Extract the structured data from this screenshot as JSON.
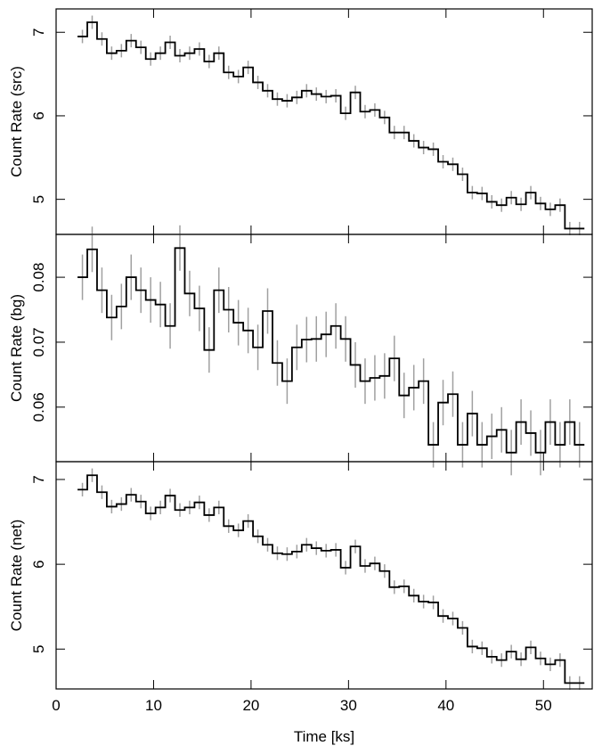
{
  "chart_data": [
    {
      "type": "step",
      "ylabel": "Count Rate (src)",
      "color": "#000000",
      "error_color": "#a0a0a0",
      "xlim": [
        0,
        55
      ],
      "xticks": [
        0,
        10,
        20,
        30,
        40,
        50
      ],
      "ylim": [
        4.58,
        7.28
      ],
      "yticks": [
        5,
        6,
        7
      ],
      "yerr": 0.08,
      "x": [
        2.7,
        3.7,
        4.7,
        5.7,
        6.7,
        7.7,
        8.7,
        9.7,
        10.7,
        11.7,
        12.7,
        13.7,
        14.7,
        15.7,
        16.7,
        17.7,
        18.7,
        19.7,
        20.7,
        21.7,
        22.7,
        23.7,
        24.7,
        25.7,
        26.7,
        27.7,
        28.7,
        29.7,
        30.7,
        31.7,
        32.7,
        33.7,
        34.7,
        35.7,
        36.7,
        37.7,
        38.7,
        39.7,
        40.7,
        41.7,
        42.7,
        43.7,
        44.7,
        45.7,
        46.7,
        47.7,
        48.7,
        49.7,
        50.7,
        51.7,
        52.7,
        53.7
      ],
      "values": [
        6.95,
        7.12,
        6.92,
        6.75,
        6.78,
        6.9,
        6.82,
        6.68,
        6.75,
        6.88,
        6.72,
        6.75,
        6.8,
        6.65,
        6.75,
        6.52,
        6.47,
        6.58,
        6.4,
        6.3,
        6.2,
        6.18,
        6.22,
        6.3,
        6.26,
        6.23,
        6.24,
        6.03,
        6.28,
        6.05,
        6.07,
        5.98,
        5.8,
        5.8,
        5.7,
        5.62,
        5.6,
        5.45,
        5.42,
        5.3,
        5.08,
        5.07,
        4.97,
        4.93,
        5.02,
        4.94,
        5.08,
        4.95,
        4.88,
        4.93,
        4.65,
        4.65
      ]
    },
    {
      "type": "step",
      "ylabel": "Count Rate (bg)",
      "color": "#000000",
      "error_color": "#a0a0a0",
      "xlim": [
        0,
        55
      ],
      "xticks": [
        0,
        10,
        20,
        30,
        40,
        50
      ],
      "ylim": [
        0.0516,
        0.0866
      ],
      "yticks": [
        0.06,
        0.07,
        0.08
      ],
      "yerr": 0.0035,
      "x": [
        2.7,
        3.7,
        4.7,
        5.7,
        6.7,
        7.7,
        8.7,
        9.7,
        10.7,
        11.7,
        12.7,
        13.7,
        14.7,
        15.7,
        16.7,
        17.7,
        18.7,
        19.7,
        20.7,
        21.7,
        22.7,
        23.7,
        24.7,
        25.7,
        26.7,
        27.7,
        28.7,
        29.7,
        30.7,
        31.7,
        32.7,
        33.7,
        34.7,
        35.7,
        36.7,
        37.7,
        38.7,
        39.7,
        40.7,
        41.7,
        42.7,
        43.7,
        44.7,
        45.7,
        46.7,
        47.7,
        48.7,
        49.7,
        50.7,
        51.7,
        52.7,
        53.7
      ],
      "values": [
        0.08,
        0.0843,
        0.078,
        0.0738,
        0.0755,
        0.08,
        0.078,
        0.0765,
        0.0758,
        0.0725,
        0.0845,
        0.0775,
        0.0752,
        0.0688,
        0.078,
        0.075,
        0.073,
        0.0718,
        0.0692,
        0.0748,
        0.0668,
        0.064,
        0.0692,
        0.0704,
        0.0705,
        0.0712,
        0.0725,
        0.0705,
        0.0665,
        0.064,
        0.0645,
        0.0648,
        0.0675,
        0.0618,
        0.063,
        0.064,
        0.0542,
        0.0607,
        0.062,
        0.0542,
        0.059,
        0.0542,
        0.0555,
        0.0565,
        0.053,
        0.0577,
        0.056,
        0.053,
        0.0577,
        0.0542,
        0.0577,
        0.0542
      ]
    },
    {
      "type": "step",
      "ylabel": "Count Rate (net)",
      "xlabel": "Time [ks]",
      "color": "#000000",
      "error_color": "#a0a0a0",
      "xlim": [
        0,
        55
      ],
      "xticks": [
        0,
        10,
        20,
        30,
        40,
        50
      ],
      "ylim": [
        4.53,
        7.21
      ],
      "yticks": [
        5,
        6,
        7
      ],
      "yerr": 0.08,
      "x": [
        2.7,
        3.7,
        4.7,
        5.7,
        6.7,
        7.7,
        8.7,
        9.7,
        10.7,
        11.7,
        12.7,
        13.7,
        14.7,
        15.7,
        16.7,
        17.7,
        18.7,
        19.7,
        20.7,
        21.7,
        22.7,
        23.7,
        24.7,
        25.7,
        26.7,
        27.7,
        28.7,
        29.7,
        30.7,
        31.7,
        32.7,
        33.7,
        34.7,
        35.7,
        36.7,
        37.7,
        38.7,
        39.7,
        40.7,
        41.7,
        42.7,
        43.7,
        44.7,
        45.7,
        46.7,
        47.7,
        48.7,
        49.7,
        50.7,
        51.7,
        52.7,
        53.7
      ],
      "values": [
        6.88,
        7.05,
        6.85,
        6.68,
        6.71,
        6.82,
        6.74,
        6.6,
        6.67,
        6.81,
        6.64,
        6.67,
        6.73,
        6.58,
        6.67,
        6.45,
        6.4,
        6.51,
        6.33,
        6.23,
        6.13,
        6.12,
        6.15,
        6.23,
        6.19,
        6.16,
        6.17,
        5.96,
        6.21,
        5.98,
        6.01,
        5.92,
        5.73,
        5.74,
        5.63,
        5.56,
        5.55,
        5.39,
        5.36,
        5.25,
        5.03,
        5.01,
        4.91,
        4.87,
        4.97,
        4.88,
        5.02,
        4.89,
        4.82,
        4.87,
        4.6,
        4.6
      ]
    }
  ]
}
